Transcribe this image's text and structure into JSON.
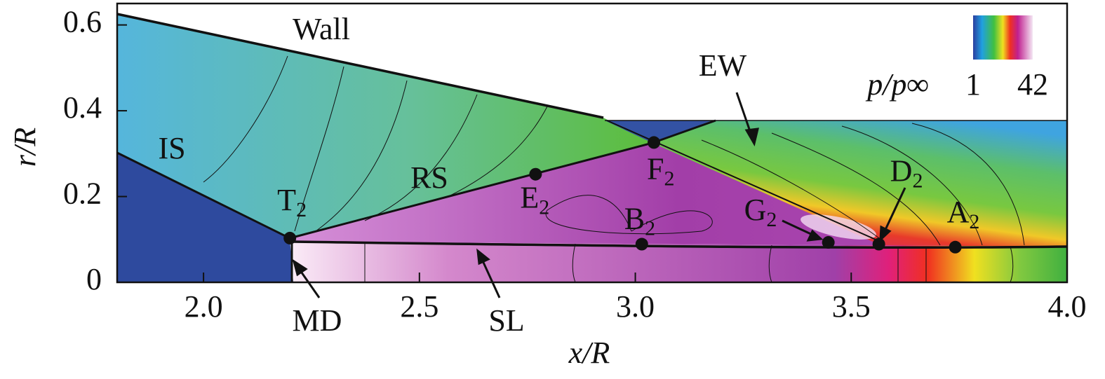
{
  "chart_data": {
    "type": "contour",
    "x_label": "x/R",
    "y_label": "r/R",
    "xlim": [
      1.8,
      4.0
    ],
    "ylim": [
      0,
      0.65
    ],
    "xticks": [
      {
        "value": 2,
        "label": "2.0"
      },
      2.5,
      {
        "value": 3,
        "label": "3.0"
      },
      3.5,
      {
        "value": 4,
        "label": "4.0"
      }
    ],
    "yticks": [
      0,
      0.2,
      0.4,
      0.6
    ],
    "colorbar": {
      "label": "p/p∞",
      "ticks": [
        1,
        42
      ]
    },
    "points": [
      {
        "name": "T",
        "sub": "2",
        "x": 2.2,
        "y": 0.103
      },
      {
        "name": "E",
        "sub": "2",
        "x": 2.769,
        "y": 0.252
      },
      {
        "name": "F",
        "sub": "2",
        "x": 3.043,
        "y": 0.326
      },
      {
        "name": "B",
        "sub": "2",
        "x": 3.015,
        "y": 0.089
      },
      {
        "name": "G",
        "sub": "2",
        "x": 3.447,
        "y": 0.093
      },
      {
        "name": "D",
        "sub": "2",
        "x": 3.564,
        "y": 0.089
      },
      {
        "name": "A",
        "sub": "2",
        "x": 3.741,
        "y": 0.082
      }
    ],
    "annotations": [
      "Wall",
      "IS",
      "RS",
      "EW",
      "MD",
      "SL"
    ]
  }
}
